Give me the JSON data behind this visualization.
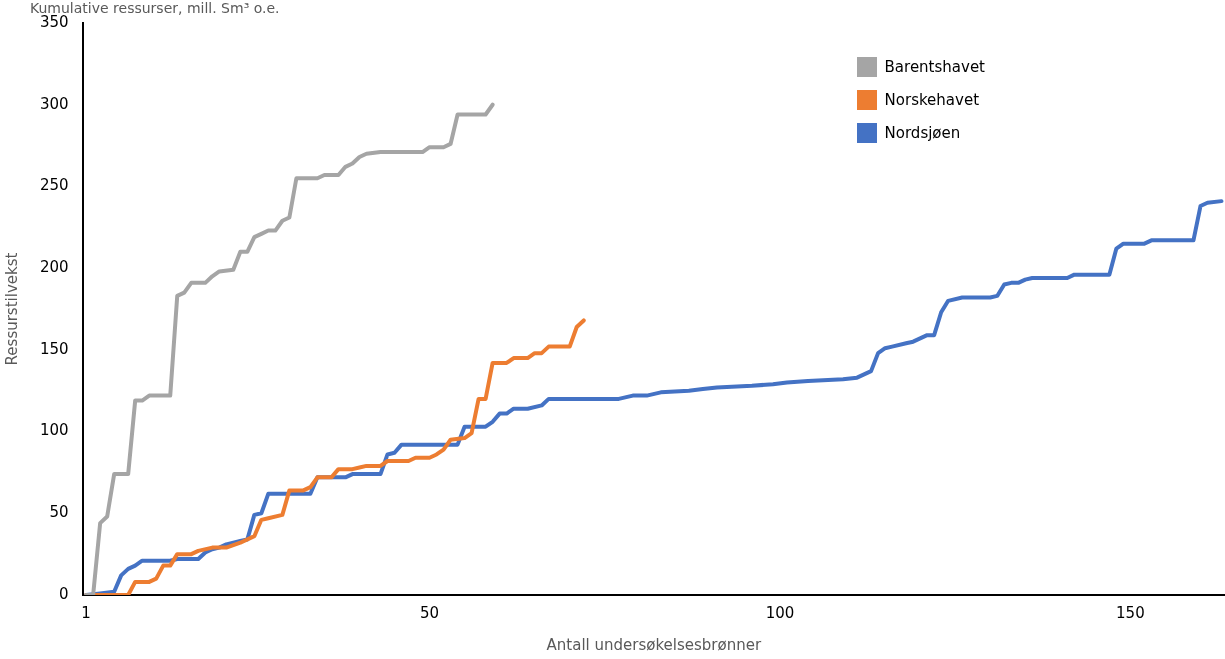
{
  "chart_data": {
    "type": "line",
    "title": "Kumulative ressurser, mill. Sm³ o.e.",
    "xlabel": "Antall undersøkelsesbrønner",
    "ylabel": "Ressurstilvekst",
    "xlim": [
      0.5,
      163.5
    ],
    "xticks": [
      1,
      50,
      100,
      150
    ],
    "ylim": [
      0,
      350
    ],
    "yticks": [
      0,
      50,
      100,
      150,
      200,
      250,
      300,
      350
    ],
    "grid": false,
    "legend": "top right",
    "marker": "none",
    "line_style": "solid",
    "series": [
      {
        "name": "Barentshavet",
        "color": "#a5a5a5",
        "x": [
          1,
          2,
          3,
          4,
          5,
          7,
          8,
          9,
          10,
          13,
          14,
          15,
          16,
          18,
          19,
          20,
          22,
          23,
          24,
          25,
          26,
          27,
          28,
          29,
          30,
          31,
          34,
          35,
          37,
          38,
          39,
          40,
          41,
          43,
          49,
          50,
          52,
          53,
          54,
          58,
          59
        ],
        "values": [
          0,
          0,
          44,
          48,
          74,
          74,
          119,
          119,
          122,
          122,
          183,
          185,
          191,
          191,
          195,
          198,
          199,
          210,
          210,
          219,
          221,
          223,
          223,
          229,
          231,
          255,
          255,
          257,
          257,
          262,
          264,
          268,
          270,
          271,
          271,
          274,
          274,
          276,
          294,
          294,
          300
        ]
      },
      {
        "name": "Norskehavet",
        "color": "#ed7d31",
        "x": [
          1,
          7,
          8,
          10,
          11,
          12,
          13,
          14,
          16,
          17,
          19,
          21,
          23,
          25,
          26,
          27,
          29,
          30,
          32,
          33,
          34,
          36,
          37,
          39,
          40,
          41,
          43,
          44,
          47,
          48,
          50,
          51,
          52,
          53,
          55,
          56,
          57,
          58,
          59,
          61,
          62,
          64,
          65,
          66,
          67,
          70,
          71,
          72
        ],
        "values": [
          0,
          0,
          8,
          8,
          10,
          18,
          18,
          25,
          25,
          27,
          29,
          29,
          32,
          36,
          46,
          47,
          49,
          64,
          64,
          66,
          72,
          72,
          77,
          77,
          78,
          79,
          79,
          82,
          82,
          84,
          84,
          86,
          89,
          95,
          96,
          99,
          120,
          120,
          142,
          142,
          145,
          145,
          148,
          148,
          152,
          152,
          164,
          168
        ]
      },
      {
        "name": "Nordsjøen",
        "color": "#4472c4",
        "x": [
          1,
          3,
          5,
          6,
          7,
          8,
          9,
          13,
          14,
          17,
          18,
          19,
          20,
          21,
          23,
          24,
          25,
          26,
          27,
          33,
          34,
          38,
          39,
          43,
          44,
          45,
          46,
          54,
          55,
          58,
          59,
          60,
          61,
          62,
          64,
          66,
          67,
          77,
          79,
          81,
          83,
          87,
          89,
          91,
          96,
          99,
          101,
          104,
          109,
          111,
          112,
          113,
          114,
          115,
          116,
          118,
          119,
          120,
          121,
          122,
          123,
          124,
          126,
          130,
          131,
          132,
          133,
          134,
          135,
          136,
          141,
          142,
          147,
          148,
          149,
          152,
          153,
          159,
          160,
          161,
          163
        ],
        "values": [
          0,
          1,
          2,
          12,
          16,
          18,
          21,
          21,
          22,
          22,
          26,
          28,
          29,
          31,
          33,
          34,
          49,
          50,
          62,
          62,
          72,
          72,
          74,
          74,
          86,
          87,
          92,
          92,
          103,
          103,
          106,
          111,
          111,
          114,
          114,
          116,
          120,
          120,
          122,
          122,
          124,
          125,
          126,
          127,
          128,
          129,
          130,
          131,
          132,
          133,
          135,
          137,
          148,
          151,
          152,
          154,
          155,
          157,
          159,
          159,
          173,
          180,
          182,
          182,
          183,
          190,
          191,
          191,
          193,
          194,
          194,
          196,
          196,
          212,
          215,
          215,
          217,
          217,
          238,
          240,
          241
        ]
      }
    ]
  }
}
